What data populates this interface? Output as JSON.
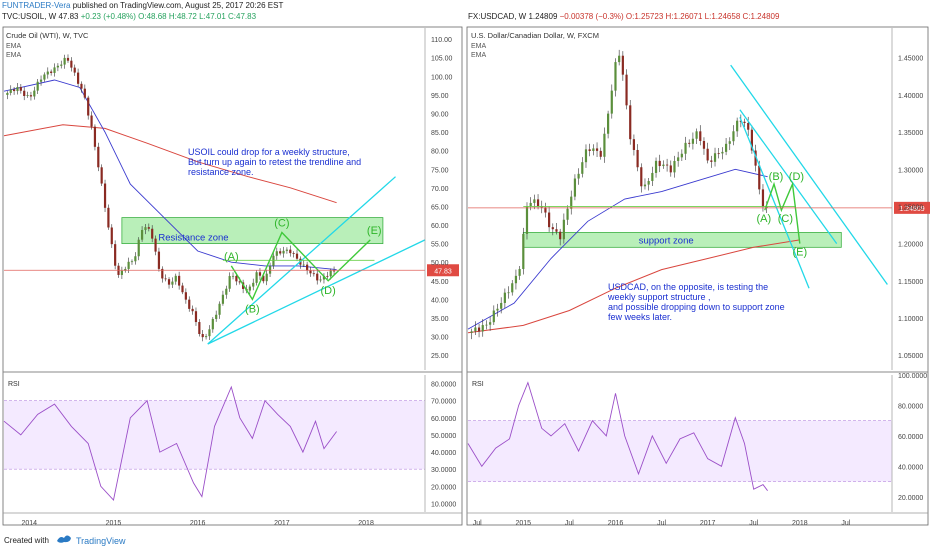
{
  "header": {
    "author": "FUNTRADER-Vera",
    "published": "published on TradingView.com, August 25, 2017 20:26 EST",
    "left_symbol": "TVC:USOIL, W",
    "left_price": "47.83",
    "left_change": "+0.23 (+0.48%)",
    "left_ohlc": {
      "o": "O:48.68",
      "h": "H:48.72",
      "l": "L:47.01",
      "c": "C:47.83"
    },
    "right_symbol": "FX:USDCAD, W",
    "right_price": "1.24809",
    "right_change": "−0.00378 (−0.3%)",
    "right_ohlc": {
      "o": "O:1.25723",
      "h": "H:1.26071",
      "l": "L:1.24658",
      "c": "C:1.24809"
    }
  },
  "footer": {
    "created": "Created with",
    "brand": "TradingView"
  },
  "chart_data": [
    {
      "type": "candlestick",
      "panel": "left-price",
      "title": "Crude Oil (WTI), W, TVC",
      "indicators": [
        "EMA",
        "EMA"
      ],
      "ylim": [
        21,
        113
      ],
      "y_ticks": [
        "110.00",
        "105.00",
        "100.00",
        "95.00",
        "90.00",
        "85.00",
        "80.00",
        "75.00",
        "70.00",
        "65.00",
        "60.00",
        "55.00",
        "50.00",
        "45.00",
        "40.00",
        "35.00",
        "30.00",
        "25.00"
      ],
      "x_ticks": [
        "2014",
        "2015",
        "2016",
        "2017",
        "2018"
      ],
      "last_price": "47.83",
      "price_path": [
        [
          2013.7,
          95
        ],
        [
          2013.85,
          97
        ],
        [
          2014.0,
          94
        ],
        [
          2014.15,
          100
        ],
        [
          2014.3,
          102
        ],
        [
          2014.45,
          105
        ],
        [
          2014.55,
          100
        ],
        [
          2014.65,
          95
        ],
        [
          2014.75,
          85
        ],
        [
          2014.85,
          72
        ],
        [
          2014.95,
          58
        ],
        [
          2015.05,
          46
        ],
        [
          2015.15,
          49
        ],
        [
          2015.25,
          51
        ],
        [
          2015.35,
          60
        ],
        [
          2015.45,
          58
        ],
        [
          2015.55,
          47
        ],
        [
          2015.65,
          44
        ],
        [
          2015.75,
          46
        ],
        [
          2015.85,
          40
        ],
        [
          2015.95,
          36
        ],
        [
          2016.05,
          29
        ],
        [
          2016.12,
          31
        ],
        [
          2016.25,
          38
        ],
        [
          2016.4,
          47
        ],
        [
          2016.5,
          44
        ],
        [
          2016.6,
          42
        ],
        [
          2016.7,
          47
        ],
        [
          2016.8,
          45
        ],
        [
          2016.9,
          52
        ],
        [
          2017.0,
          53
        ],
        [
          2017.1,
          53
        ],
        [
          2017.25,
          49
        ],
        [
          2017.35,
          47
        ],
        [
          2017.45,
          45
        ],
        [
          2017.55,
          47
        ],
        [
          2017.65,
          48
        ]
      ],
      "ema_fast_path": [
        [
          2013.7,
          96
        ],
        [
          2014.3,
          99
        ],
        [
          2014.6,
          97
        ],
        [
          2014.9,
          85
        ],
        [
          2015.2,
          71
        ],
        [
          2015.6,
          62
        ],
        [
          2016.0,
          53
        ],
        [
          2016.4,
          50
        ],
        [
          2016.8,
          49
        ],
        [
          2017.2,
          49
        ],
        [
          2017.65,
          48
        ]
      ],
      "ema_slow_path": [
        [
          2013.7,
          84
        ],
        [
          2014.4,
          87
        ],
        [
          2014.9,
          86
        ],
        [
          2015.4,
          82
        ],
        [
          2016.0,
          77
        ],
        [
          2016.6,
          73
        ],
        [
          2017.1,
          70
        ],
        [
          2017.65,
          66
        ]
      ],
      "resistance_zone": {
        "label": "Resistance zone",
        "y_range": [
          55,
          62
        ],
        "x_range": [
          2015.1,
          2018.2
        ]
      },
      "trendlines": [
        {
          "from": [
            2016.12,
            28
          ],
          "to": [
            2018.35,
            73
          ]
        },
        {
          "from": [
            2016.12,
            28
          ],
          "to": [
            2018.7,
            56
          ]
        }
      ],
      "wave_labels": [
        "(A)",
        "(B)",
        "(C)",
        "(D)",
        "(E)"
      ],
      "wave_path": [
        [
          2016.4,
          49
        ],
        [
          2016.65,
          40
        ],
        [
          2017.0,
          58
        ],
        [
          2017.55,
          45
        ],
        [
          2018.05,
          56
        ]
      ],
      "annotation": [
        "USOIL could drop for a weekly structure,",
        "But turn up again to retest the trendline and",
        "resistance zone."
      ]
    },
    {
      "type": "line",
      "panel": "left-rsi",
      "label": "RSI",
      "ylim": [
        5,
        85
      ],
      "y_ticks": [
        "80.0000",
        "70.0000",
        "60.0000",
        "50.0000",
        "40.0000",
        "30.0000",
        "20.0000",
        "10.0000"
      ],
      "band": [
        30,
        70
      ],
      "x": [
        2013.7,
        2013.9,
        2014.1,
        2014.3,
        2014.5,
        2014.7,
        2014.85,
        2015.0,
        2015.2,
        2015.4,
        2015.55,
        2015.75,
        2015.95,
        2016.05,
        2016.2,
        2016.4,
        2016.5,
        2016.65,
        2016.8,
        2016.95,
        2017.1,
        2017.25,
        2017.4,
        2017.5,
        2017.65
      ],
      "values": [
        58,
        50,
        62,
        68,
        55,
        45,
        20,
        12,
        60,
        70,
        40,
        45,
        22,
        14,
        55,
        78,
        60,
        48,
        70,
        62,
        55,
        40,
        58,
        42,
        52
      ]
    },
    {
      "type": "candlestick",
      "panel": "right-price",
      "title": "U.S. Dollar/Canadian Dollar, W, FXCM",
      "indicators": [
        "EMA",
        "EMA"
      ],
      "ylim": [
        1.03,
        1.49
      ],
      "y_ticks": [
        "1.45000",
        "1.40000",
        "1.35000",
        "1.30000",
        "1.25000",
        "1.20000",
        "1.15000",
        "1.10000",
        "1.05000"
      ],
      "x_ticks": [
        "Jul",
        "2015",
        "Jul",
        "2016",
        "Jul",
        "2017",
        "Jul",
        "2018",
        "Jul"
      ],
      "last_price": "1.24809",
      "price_path": [
        [
          2014.4,
          1.08
        ],
        [
          2014.6,
          1.09
        ],
        [
          2014.8,
          1.13
        ],
        [
          2014.95,
          1.16
        ],
        [
          2015.05,
          1.26
        ],
        [
          2015.2,
          1.25
        ],
        [
          2015.3,
          1.22
        ],
        [
          2015.4,
          1.21
        ],
        [
          2015.55,
          1.28
        ],
        [
          2015.7,
          1.33
        ],
        [
          2015.85,
          1.32
        ],
        [
          2016.0,
          1.44
        ],
        [
          2016.05,
          1.46
        ],
        [
          2016.15,
          1.35
        ],
        [
          2016.3,
          1.27
        ],
        [
          2016.45,
          1.31
        ],
        [
          2016.6,
          1.3
        ],
        [
          2016.75,
          1.33
        ],
        [
          2016.9,
          1.35
        ],
        [
          2017.0,
          1.31
        ],
        [
          2017.2,
          1.33
        ],
        [
          2017.35,
          1.37
        ],
        [
          2017.45,
          1.35
        ],
        [
          2017.55,
          1.28
        ],
        [
          2017.62,
          1.24
        ],
        [
          2017.65,
          1.248
        ]
      ],
      "ema_fast_path": [
        [
          2014.4,
          1.085
        ],
        [
          2014.9,
          1.12
        ],
        [
          2015.3,
          1.18
        ],
        [
          2015.7,
          1.23
        ],
        [
          2016.1,
          1.26
        ],
        [
          2016.5,
          1.27
        ],
        [
          2016.9,
          1.285
        ],
        [
          2017.3,
          1.3
        ],
        [
          2017.65,
          1.29
        ]
      ],
      "ema_slow_path": [
        [
          2014.4,
          1.08
        ],
        [
          2015.0,
          1.09
        ],
        [
          2015.5,
          1.11
        ],
        [
          2016.0,
          1.14
        ],
        [
          2016.5,
          1.165
        ],
        [
          2017.0,
          1.18
        ],
        [
          2017.5,
          1.195
        ],
        [
          2018.0,
          1.205
        ]
      ],
      "support_zone": {
        "label": "support zone",
        "y_range": [
          1.195,
          1.215
        ],
        "x_range": [
          2015.0,
          2018.45
        ]
      },
      "trendlines": [
        {
          "from": [
            2017.35,
            1.38
          ],
          "to": [
            2018.4,
            1.2
          ]
        },
        {
          "from": [
            2017.25,
            1.44
          ],
          "to": [
            2018.95,
            1.145
          ]
        },
        {
          "from": [
            2017.35,
            1.37
          ],
          "to": [
            2018.1,
            1.14
          ]
        }
      ],
      "wave_labels": [
        "(A)",
        "(B)",
        "(C)",
        "(D)",
        "(E)"
      ],
      "wave_path": [
        [
          2017.62,
          1.245
        ],
        [
          2017.72,
          1.28
        ],
        [
          2017.8,
          1.245
        ],
        [
          2017.92,
          1.28
        ],
        [
          2018.0,
          1.2
        ]
      ],
      "annotation": [
        "USDCAD, on the opposite, is testing the",
        "weekly support structure ,",
        "and possible  dropping down to support zone",
        "few weeks later."
      ]
    },
    {
      "type": "line",
      "panel": "right-rsi",
      "label": "RSI",
      "ylim": [
        10,
        100
      ],
      "y_ticks": [
        "100.0000",
        "80.0000",
        "60.0000",
        "40.0000",
        "20.0000"
      ],
      "band": [
        30,
        70
      ],
      "x": [
        2014.4,
        2014.55,
        2014.7,
        2014.85,
        2014.95,
        2015.05,
        2015.2,
        2015.3,
        2015.45,
        2015.6,
        2015.75,
        2015.9,
        2016.0,
        2016.1,
        2016.25,
        2016.4,
        2016.55,
        2016.7,
        2016.85,
        2017.0,
        2017.15,
        2017.3,
        2017.4,
        2017.5,
        2017.6,
        2017.65
      ],
      "values": [
        55,
        40,
        52,
        58,
        80,
        95,
        65,
        60,
        68,
        50,
        70,
        60,
        88,
        60,
        35,
        60,
        42,
        58,
        62,
        45,
        40,
        72,
        55,
        25,
        28,
        24
      ]
    }
  ]
}
